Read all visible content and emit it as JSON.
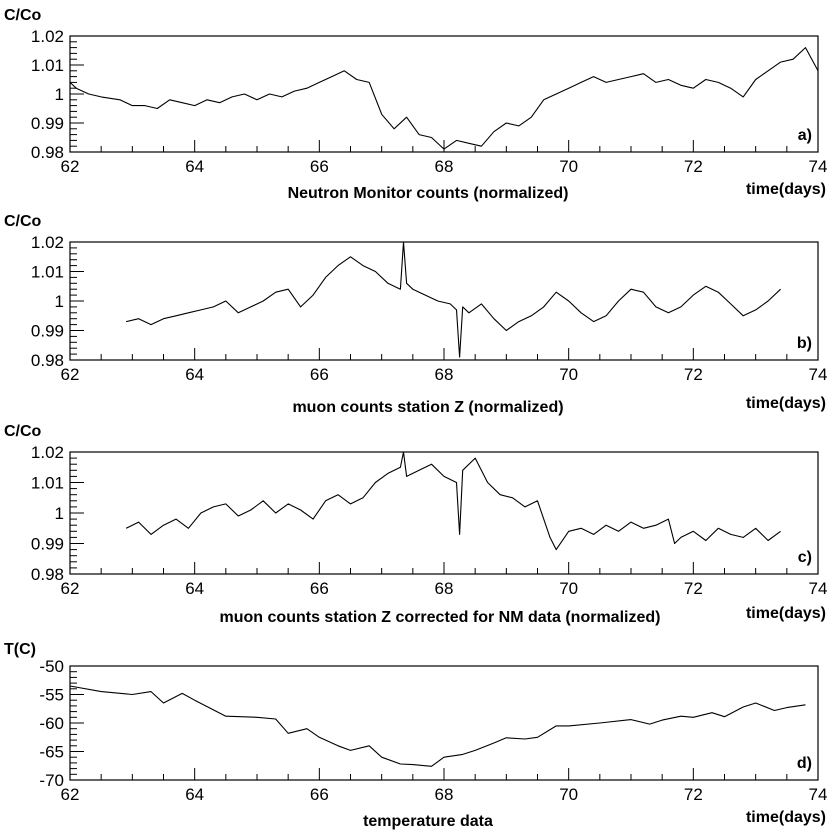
{
  "chart_data": [
    {
      "id": "a",
      "type": "line",
      "panel_label": "a)",
      "ylabel": "C/Co",
      "xlabel": "Neutron Monitor counts (normalized)",
      "xunit": "time(days)",
      "xlim": [
        62,
        74
      ],
      "ylim": [
        0.98,
        1.02
      ],
      "xticks": [
        62,
        64,
        66,
        68,
        70,
        72,
        74
      ],
      "yticks": [
        0.98,
        0.99,
        1,
        1.01,
        1.02
      ],
      "ytick_labels": [
        "0.98",
        "0.99",
        "1",
        "1.01",
        "1.02"
      ],
      "series": [
        {
          "x": [
            62.0,
            62.1,
            62.3,
            62.5,
            62.8,
            63.0,
            63.2,
            63.4,
            63.6,
            63.8,
            64.0,
            64.2,
            64.4,
            64.6,
            64.8,
            65.0,
            65.2,
            65.4,
            65.6,
            65.8,
            66.0,
            66.2,
            66.4,
            66.6,
            66.8,
            67.0,
            67.2,
            67.4,
            67.6,
            67.8,
            68.0,
            68.2,
            68.4,
            68.6,
            68.8,
            69.0,
            69.2,
            69.4,
            69.6,
            69.8,
            70.0,
            70.2,
            70.4,
            70.6,
            70.8,
            71.0,
            71.2,
            71.4,
            71.6,
            71.8,
            72.0,
            72.2,
            72.4,
            72.6,
            72.8,
            73.0,
            73.2,
            73.4,
            73.6,
            73.8,
            74.0
          ],
          "y": [
            1.004,
            1.002,
            1.0,
            0.999,
            0.998,
            0.996,
            0.996,
            0.995,
            0.998,
            0.997,
            0.996,
            0.998,
            0.997,
            0.999,
            1.0,
            0.998,
            1.0,
            0.999,
            1.001,
            1.002,
            1.004,
            1.006,
            1.008,
            1.005,
            1.004,
            0.993,
            0.988,
            0.992,
            0.986,
            0.985,
            0.981,
            0.984,
            0.983,
            0.982,
            0.987,
            0.99,
            0.989,
            0.992,
            0.998,
            1.0,
            1.002,
            1.004,
            1.006,
            1.004,
            1.005,
            1.006,
            1.007,
            1.004,
            1.005,
            1.003,
            1.002,
            1.005,
            1.004,
            1.002,
            0.999,
            1.005,
            1.008,
            1.011,
            1.012,
            1.016,
            1.008
          ]
        }
      ]
    },
    {
      "id": "b",
      "type": "line",
      "panel_label": "b)",
      "ylabel": "C/Co",
      "xlabel": "muon counts station Z (normalized)",
      "xunit": "time(days)",
      "xlim": [
        62,
        74
      ],
      "ylim": [
        0.98,
        1.02
      ],
      "xticks": [
        62,
        64,
        66,
        68,
        70,
        72,
        74
      ],
      "yticks": [
        0.98,
        0.99,
        1,
        1.01,
        1.02
      ],
      "ytick_labels": [
        "0.98",
        "0.99",
        "1",
        "1.01",
        "1.02"
      ],
      "series": [
        {
          "x": [
            62.9,
            63.1,
            63.3,
            63.5,
            63.7,
            63.9,
            64.1,
            64.3,
            64.5,
            64.7,
            64.9,
            65.1,
            65.3,
            65.5,
            65.7,
            65.9,
            66.1,
            66.3,
            66.5,
            66.7,
            66.9,
            67.1,
            67.3,
            67.35,
            67.4,
            67.5,
            67.7,
            67.9,
            68.1,
            68.2,
            68.25,
            68.3,
            68.4,
            68.6,
            68.8,
            69.0,
            69.2,
            69.4,
            69.6,
            69.8,
            70.0,
            70.2,
            70.4,
            70.6,
            70.8,
            71.0,
            71.2,
            71.4,
            71.6,
            71.8,
            72.0,
            72.2,
            72.4,
            72.6,
            72.8,
            73.0,
            73.2,
            73.4
          ],
          "y": [
            0.993,
            0.994,
            0.992,
            0.994,
            0.995,
            0.996,
            0.997,
            0.998,
            1.0,
            0.996,
            0.998,
            1.0,
            1.003,
            1.004,
            0.998,
            1.002,
            1.008,
            1.012,
            1.015,
            1.012,
            1.01,
            1.006,
            1.004,
            1.02,
            1.006,
            1.004,
            1.002,
            1.0,
            0.999,
            0.997,
            0.981,
            0.998,
            0.996,
            0.999,
            0.994,
            0.99,
            0.993,
            0.995,
            0.998,
            1.003,
            1.0,
            0.996,
            0.993,
            0.995,
            1.0,
            1.004,
            1.003,
            0.998,
            0.996,
            0.998,
            1.002,
            1.005,
            1.003,
            0.999,
            0.995,
            0.997,
            1.0,
            1.004
          ]
        }
      ]
    },
    {
      "id": "c",
      "type": "line",
      "panel_label": "c)",
      "ylabel": "C/Co",
      "xlabel": "muon counts station Z corrected for NM data (normalized)",
      "xunit": "time(days)",
      "xlim": [
        62,
        74
      ],
      "ylim": [
        0.98,
        1.02
      ],
      "xticks": [
        62,
        64,
        66,
        68,
        70,
        72,
        74
      ],
      "yticks": [
        0.98,
        0.99,
        1,
        1.01,
        1.02
      ],
      "ytick_labels": [
        "0.98",
        "0.99",
        "1",
        "1.01",
        "1.02"
      ],
      "series": [
        {
          "x": [
            62.9,
            63.1,
            63.3,
            63.5,
            63.7,
            63.9,
            64.1,
            64.3,
            64.5,
            64.7,
            64.9,
            65.1,
            65.3,
            65.5,
            65.7,
            65.9,
            66.1,
            66.3,
            66.5,
            66.7,
            66.9,
            67.1,
            67.3,
            67.35,
            67.4,
            67.6,
            67.8,
            68.0,
            68.2,
            68.25,
            68.3,
            68.5,
            68.7,
            68.9,
            69.1,
            69.3,
            69.5,
            69.7,
            69.8,
            70.0,
            70.2,
            70.4,
            70.6,
            70.8,
            71.0,
            71.2,
            71.4,
            71.6,
            71.7,
            71.8,
            72.0,
            72.2,
            72.4,
            72.6,
            72.8,
            73.0,
            73.2,
            73.4
          ],
          "y": [
            0.995,
            0.997,
            0.993,
            0.996,
            0.998,
            0.995,
            1.0,
            1.002,
            1.003,
            0.999,
            1.001,
            1.004,
            1.0,
            1.003,
            1.001,
            0.998,
            1.004,
            1.006,
            1.003,
            1.005,
            1.01,
            1.013,
            1.015,
            1.02,
            1.012,
            1.014,
            1.016,
            1.012,
            1.01,
            0.993,
            1.014,
            1.018,
            1.01,
            1.006,
            1.005,
            1.002,
            1.004,
            0.992,
            0.988,
            0.994,
            0.995,
            0.993,
            0.996,
            0.994,
            0.997,
            0.995,
            0.996,
            0.998,
            0.99,
            0.992,
            0.994,
            0.991,
            0.995,
            0.993,
            0.992,
            0.995,
            0.991,
            0.994
          ]
        }
      ]
    },
    {
      "id": "d",
      "type": "line",
      "panel_label": "d)",
      "ylabel": "T(C)",
      "xlabel": "temperature data",
      "xunit": "time(days)",
      "xlim": [
        62,
        74
      ],
      "ylim": [
        -70,
        -50
      ],
      "xticks": [
        62,
        64,
        66,
        68,
        70,
        72,
        74
      ],
      "yticks": [
        -70,
        -65,
        -60,
        -55,
        -50
      ],
      "ytick_labels": [
        "-70",
        "-65",
        "-60",
        "-55",
        "-50"
      ],
      "series": [
        {
          "x": [
            62.0,
            62.5,
            63.0,
            63.3,
            63.5,
            63.8,
            64.0,
            64.5,
            65.0,
            65.3,
            65.5,
            65.8,
            66.0,
            66.3,
            66.5,
            66.8,
            67.0,
            67.3,
            67.5,
            67.8,
            68.0,
            68.3,
            68.5,
            68.8,
            69.0,
            69.3,
            69.5,
            69.8,
            70.0,
            70.5,
            71.0,
            71.3,
            71.5,
            71.8,
            72.0,
            72.3,
            72.5,
            72.8,
            73.0,
            73.3,
            73.5,
            73.8
          ],
          "y": [
            -53.5,
            -54.5,
            -55.0,
            -54.5,
            -56.5,
            -54.8,
            -56.0,
            -58.8,
            -59.0,
            -59.3,
            -61.8,
            -61.0,
            -62.5,
            -64.0,
            -64.8,
            -64.0,
            -66.0,
            -67.2,
            -67.3,
            -67.6,
            -66.0,
            -65.5,
            -64.8,
            -63.5,
            -62.6,
            -62.8,
            -62.5,
            -60.5,
            -60.5,
            -60.0,
            -59.4,
            -60.2,
            -59.5,
            -58.8,
            -59.0,
            -58.2,
            -58.9,
            -57.2,
            -56.5,
            -57.8,
            -57.3,
            -56.8
          ]
        }
      ]
    }
  ]
}
